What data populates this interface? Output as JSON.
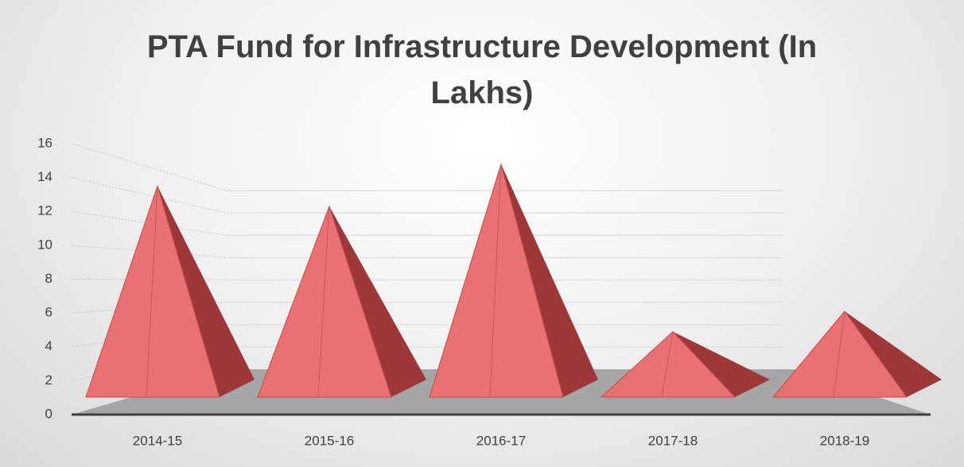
{
  "chart_data": {
    "type": "pyramid3d",
    "title": "PTA Fund for Infrastructure Development (In Lakhs)",
    "categories": [
      "2014-15",
      "2015-16",
      "2016-17",
      "2017-18",
      "2018-19"
    ],
    "values": [
      13.5,
      12.3,
      14.8,
      4.9,
      6.1
    ],
    "color": "#e87272",
    "ylim": [
      0,
      16
    ],
    "yticks": [
      0,
      2,
      4,
      6,
      8,
      10,
      12,
      14,
      16
    ],
    "grid": true
  }
}
